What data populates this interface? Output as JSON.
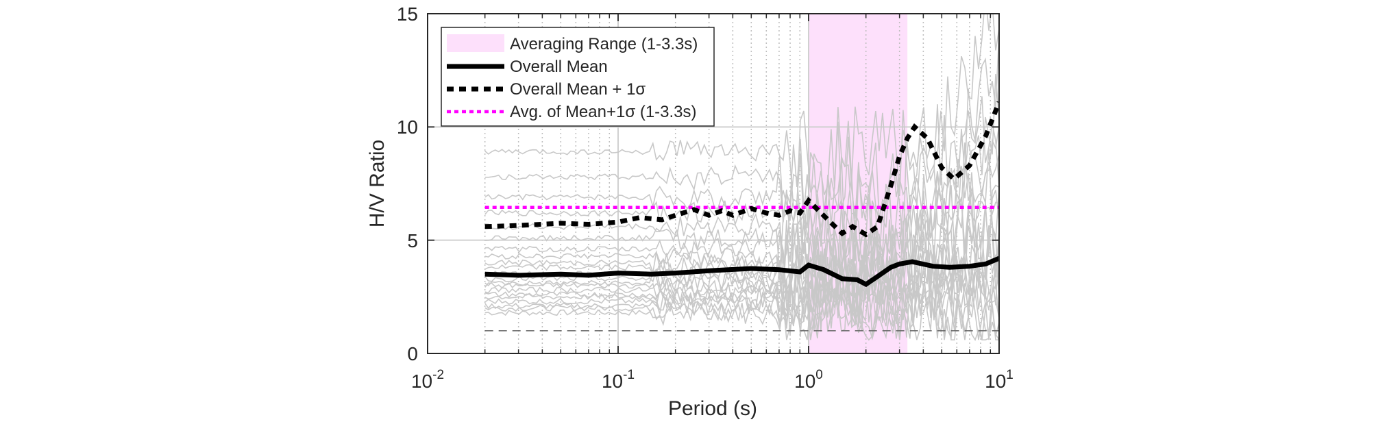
{
  "chart_data": {
    "type": "line",
    "title": "",
    "xlabel": "Period (s)",
    "ylabel": "H/V Ratio",
    "xscale": "log",
    "xlim": [
      0.01,
      10
    ],
    "ylim": [
      0,
      15
    ],
    "yticks": [
      0,
      5,
      10,
      15
    ],
    "xtick_labels": [
      {
        "base": "10",
        "exp": "-2"
      },
      {
        "base": "10",
        "exp": "-1"
      },
      {
        "base": "10",
        "exp": "0"
      },
      {
        "base": "10",
        "exp": "1"
      }
    ],
    "grid": true,
    "legend_position": "top-left",
    "colors": {
      "range_fill": "#fde0fb",
      "mean": "#000000",
      "mean_plus_sigma": "#000000",
      "avg_line": "#ff00ff",
      "background_curves": "#c8c8c8",
      "reference_line": "#666666"
    },
    "averaging_range": [
      1.0,
      3.3
    ],
    "avg_mean_plus_sigma_value": 6.45,
    "reference_line_value": 1.0,
    "legend": [
      {
        "key": "range",
        "label": "Averaging Range (1-3.3s)"
      },
      {
        "key": "mean",
        "label": "Overall Mean"
      },
      {
        "key": "mean_sigma",
        "label": "Overall Mean + 1σ"
      },
      {
        "key": "avg",
        "label": "Avg. of Mean+1σ (1-3.3s)"
      }
    ],
    "series": [
      {
        "name": "Overall Mean",
        "x": [
          0.02,
          0.03,
          0.05,
          0.07,
          0.1,
          0.15,
          0.2,
          0.3,
          0.5,
          0.7,
          0.9,
          1.0,
          1.2,
          1.5,
          1.8,
          2.0,
          2.3,
          2.7,
          3.0,
          3.5,
          4.5,
          5.5,
          7.0,
          8.5,
          10
        ],
        "y": [
          3.5,
          3.45,
          3.5,
          3.45,
          3.55,
          3.5,
          3.55,
          3.65,
          3.75,
          3.7,
          3.6,
          3.9,
          3.7,
          3.3,
          3.25,
          3.05,
          3.4,
          3.8,
          3.95,
          4.05,
          3.85,
          3.8,
          3.85,
          3.95,
          4.2
        ]
      },
      {
        "name": "Overall Mean + 1σ",
        "x": [
          0.02,
          0.03,
          0.05,
          0.07,
          0.1,
          0.13,
          0.17,
          0.2,
          0.25,
          0.3,
          0.35,
          0.4,
          0.5,
          0.6,
          0.7,
          0.8,
          0.9,
          1.0,
          1.1,
          1.3,
          1.5,
          1.7,
          2.0,
          2.3,
          2.7,
          3.0,
          3.3,
          3.6,
          4.2,
          5.0,
          5.8,
          7.0,
          8.5,
          10
        ],
        "y": [
          5.6,
          5.65,
          5.75,
          5.7,
          5.8,
          6.0,
          5.9,
          6.1,
          6.35,
          6.1,
          6.3,
          6.1,
          6.4,
          6.2,
          6.1,
          6.3,
          6.2,
          6.75,
          6.4,
          5.8,
          5.3,
          5.6,
          5.25,
          5.6,
          7.4,
          8.7,
          9.5,
          10.0,
          9.5,
          8.2,
          7.7,
          8.3,
          9.6,
          11.1
        ]
      }
    ]
  }
}
